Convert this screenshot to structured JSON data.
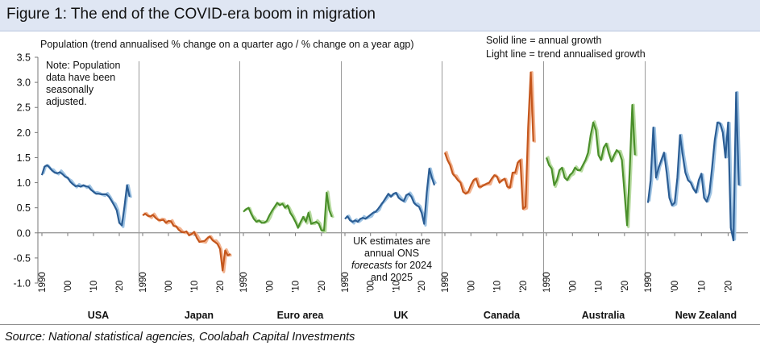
{
  "figure": {
    "title": "Figure 1: The end of the COVID-era boom in migration",
    "source": "Source: National statistical agencies, Coolabah Capital Investments"
  },
  "chart_data": {
    "type": "line",
    "title": "Figure 1: The end of the COVID-era boom in migration",
    "ylabel": "Population (trend annualised % change on a quarter ago / % change on a year agp)",
    "ylim": [
      -1.0,
      3.5
    ],
    "yticks": [
      "3.5",
      "3.0",
      "2.5",
      "2.0",
      "1.5",
      "1.0",
      "0.5",
      "0.0",
      "-0.5",
      "-1.0"
    ],
    "xtick_labels": [
      "1990",
      "'00",
      "'10",
      "'20"
    ],
    "legend": [
      "Solid line = annual growth",
      "Light line = trend annualised growth"
    ],
    "annotations": {
      "note": [
        "Note: Population",
        "data have been",
        "seasonally",
        "adjusted."
      ],
      "uk": [
        "UK estimates are",
        "annual ONS",
        "forecasts for 2024",
        "and 2025"
      ]
    },
    "series": [
      {
        "name": "USA",
        "color": "#2b5d94",
        "light": "#9ec3e3",
        "years": [
          1990,
          1991,
          1992,
          1993,
          1994,
          1995,
          1996,
          1997,
          1998,
          1999,
          2000,
          2001,
          2002,
          2003,
          2004,
          2005,
          2006,
          2007,
          2008,
          2009,
          2010,
          2011,
          2012,
          2013,
          2014,
          2015,
          2016,
          2017,
          2018,
          2019,
          2020,
          2021,
          2022,
          2023,
          2024
        ],
        "values": [
          1.15,
          1.32,
          1.35,
          1.3,
          1.24,
          1.2,
          1.19,
          1.21,
          1.17,
          1.12,
          1.1,
          1.02,
          0.97,
          0.93,
          0.94,
          0.92,
          0.95,
          0.93,
          0.92,
          0.86,
          0.82,
          0.78,
          0.78,
          0.77,
          0.77,
          0.77,
          0.72,
          0.64,
          0.55,
          0.45,
          0.2,
          0.15,
          0.52,
          0.95,
          0.72
        ]
      },
      {
        "name": "Japan",
        "color": "#c4561c",
        "light": "#f2b28e",
        "years": [
          1990,
          1991,
          1992,
          1993,
          1994,
          1995,
          1996,
          1997,
          1998,
          1999,
          2000,
          2001,
          2002,
          2003,
          2004,
          2005,
          2006,
          2007,
          2008,
          2009,
          2010,
          2011,
          2012,
          2013,
          2014,
          2015,
          2016,
          2017,
          2018,
          2019,
          2020,
          2021,
          2022,
          2023,
          2024
        ],
        "values": [
          0.35,
          0.38,
          0.34,
          0.33,
          0.36,
          0.3,
          0.26,
          0.25,
          0.26,
          0.2,
          0.24,
          0.23,
          0.14,
          0.13,
          0.06,
          0.02,
          0.01,
          0.03,
          -0.05,
          -0.02,
          0.02,
          -0.1,
          -0.18,
          -0.17,
          -0.16,
          -0.11,
          -0.07,
          -0.14,
          -0.18,
          -0.22,
          -0.32,
          -0.75,
          -0.35,
          -0.45,
          -0.42
        ]
      },
      {
        "name": "Euro area",
        "color": "#4a8f2a",
        "light": "#b7dba0",
        "years": [
          1990,
          1991,
          1992,
          1993,
          1994,
          1995,
          1996,
          1997,
          1998,
          1999,
          2000,
          2001,
          2002,
          2003,
          2004,
          2005,
          2006,
          2007,
          2008,
          2009,
          2010,
          2011,
          2012,
          2013,
          2014,
          2015,
          2016,
          2017,
          2018,
          2019,
          2020,
          2021,
          2022,
          2023,
          2024
        ],
        "values": [
          0.42,
          0.47,
          0.5,
          0.38,
          0.28,
          0.22,
          0.25,
          0.2,
          0.2,
          0.24,
          0.35,
          0.44,
          0.52,
          0.6,
          0.55,
          0.58,
          0.5,
          0.55,
          0.4,
          0.32,
          0.22,
          0.1,
          0.22,
          0.32,
          0.22,
          0.4,
          0.18,
          0.2,
          0.22,
          0.18,
          0.05,
          0.05,
          0.8,
          0.45,
          0.32
        ]
      },
      {
        "name": "UK",
        "color": "#2b5d94",
        "light": "#9ec3e3",
        "years": [
          1990,
          1991,
          1992,
          1993,
          1994,
          1995,
          1996,
          1997,
          1998,
          1999,
          2000,
          2001,
          2002,
          2003,
          2004,
          2005,
          2006,
          2007,
          2008,
          2009,
          2010,
          2011,
          2012,
          2013,
          2014,
          2015,
          2016,
          2017,
          2018,
          2019,
          2020,
          2021,
          2022,
          2023,
          2024,
          2025
        ],
        "values": [
          0.28,
          0.33,
          0.25,
          0.22,
          0.25,
          0.22,
          0.28,
          0.3,
          0.28,
          0.32,
          0.36,
          0.4,
          0.42,
          0.48,
          0.55,
          0.62,
          0.7,
          0.78,
          0.72,
          0.78,
          0.8,
          0.7,
          0.66,
          0.63,
          0.75,
          0.78,
          0.72,
          0.6,
          0.55,
          0.52,
          0.4,
          0.18,
          0.8,
          1.28,
          1.1,
          0.95
        ]
      },
      {
        "name": "Canada",
        "color": "#c4561c",
        "light": "#f2b28e",
        "years": [
          1990,
          1991,
          1992,
          1993,
          1994,
          1995,
          1996,
          1997,
          1998,
          1999,
          2000,
          2001,
          2002,
          2003,
          2004,
          2005,
          2006,
          2007,
          2008,
          2009,
          2010,
          2011,
          2012,
          2013,
          2014,
          2015,
          2016,
          2017,
          2018,
          2019,
          2020,
          2021,
          2022,
          2023,
          2024
        ],
        "values": [
          1.6,
          1.45,
          1.35,
          1.18,
          1.12,
          1.05,
          1.0,
          0.82,
          0.78,
          0.82,
          0.95,
          1.05,
          1.08,
          0.92,
          0.92,
          0.95,
          0.98,
          1.0,
          1.08,
          1.15,
          1.12,
          1.0,
          1.05,
          1.08,
          0.92,
          0.9,
          1.2,
          1.2,
          1.4,
          1.45,
          0.48,
          0.52,
          2.1,
          3.2,
          1.82
        ]
      },
      {
        "name": "Australia",
        "color": "#4a8f2a",
        "light": "#b7dba0",
        "years": [
          1990,
          1991,
          1992,
          1993,
          1994,
          1995,
          1996,
          1997,
          1998,
          1999,
          2000,
          2001,
          2002,
          2003,
          2004,
          2005,
          2006,
          2007,
          2008,
          2009,
          2010,
          2011,
          2012,
          2013,
          2014,
          2015,
          2016,
          2017,
          2018,
          2019,
          2020,
          2021,
          2022,
          2023,
          2024
        ],
        "values": [
          1.5,
          1.35,
          1.28,
          0.95,
          1.05,
          1.25,
          1.3,
          1.1,
          1.05,
          1.15,
          1.2,
          1.3,
          1.25,
          1.25,
          1.35,
          1.45,
          1.6,
          1.95,
          2.2,
          2.05,
          1.55,
          1.45,
          1.7,
          1.78,
          1.58,
          1.42,
          1.55,
          1.65,
          1.6,
          1.45,
          0.8,
          0.15,
          1.25,
          2.55,
          1.55
        ]
      },
      {
        "name": "New Zealand",
        "color": "#2b5d94",
        "light": "#9ec3e3",
        "years": [
          1990,
          1991,
          1992,
          1993,
          1994,
          1995,
          1996,
          1997,
          1998,
          1999,
          2000,
          2001,
          2002,
          2003,
          2004,
          2005,
          2006,
          2007,
          2008,
          2009,
          2010,
          2011,
          2012,
          2013,
          2014,
          2015,
          2016,
          2017,
          2018,
          2019,
          2020,
          2021,
          2022,
          2023,
          2024
        ],
        "values": [
          0.6,
          1.05,
          2.1,
          1.1,
          1.3,
          1.45,
          1.6,
          1.2,
          0.7,
          0.55,
          0.6,
          1.1,
          1.95,
          1.55,
          1.2,
          1.05,
          1.0,
          0.88,
          0.8,
          1.05,
          1.18,
          0.7,
          0.62,
          0.8,
          1.3,
          1.85,
          2.2,
          2.18,
          2.0,
          1.5,
          2.2,
          0.1,
          -0.15,
          2.8,
          0.95
        ]
      }
    ]
  }
}
